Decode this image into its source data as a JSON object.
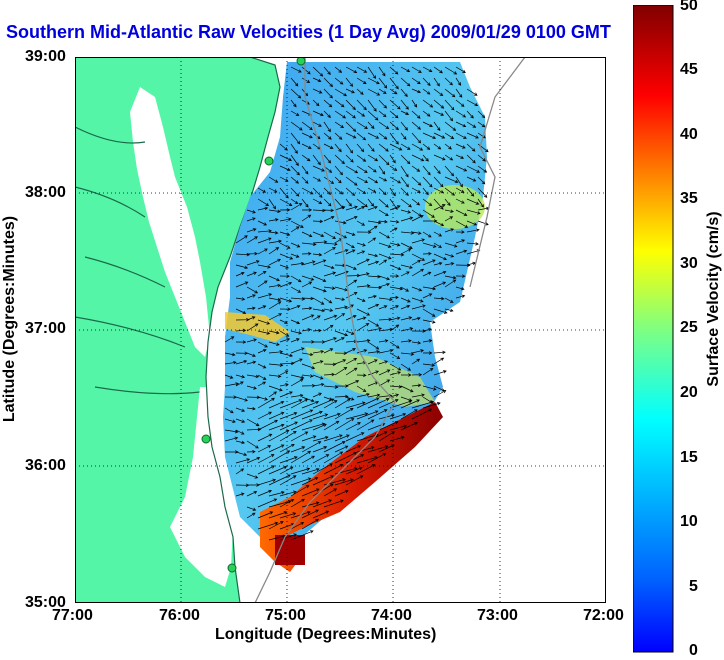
{
  "title": "Southern Mid-Atlantic Raw Velocities (1 Day Avg) 2009/01/29 0100 GMT",
  "axes": {
    "x_label": "Longitude (Degrees:Minutes)",
    "y_label": "Latitude (Degrees:Minutes)",
    "x_ticks": [
      "77:00",
      "76:00",
      "75:00",
      "74:00",
      "73:00",
      "72:00"
    ],
    "y_ticks": [
      "39:00",
      "38:00",
      "37:00",
      "36:00",
      "35:00"
    ]
  },
  "colorbar": {
    "label": "Surface Velocity (cm/s)",
    "ticks": [
      "50",
      "45",
      "40",
      "35",
      "30",
      "25",
      "20",
      "15",
      "10",
      "5",
      "0"
    ],
    "range": [
      0,
      50
    ]
  },
  "colors": {
    "land": "#55f5a8",
    "title": "#0000dd",
    "coast": "#1a6a4a"
  },
  "map": {
    "lon_range": [
      -77,
      -72
    ],
    "lat_range": [
      35,
      39
    ],
    "grid": "dotted",
    "markers": "green-dots"
  }
}
